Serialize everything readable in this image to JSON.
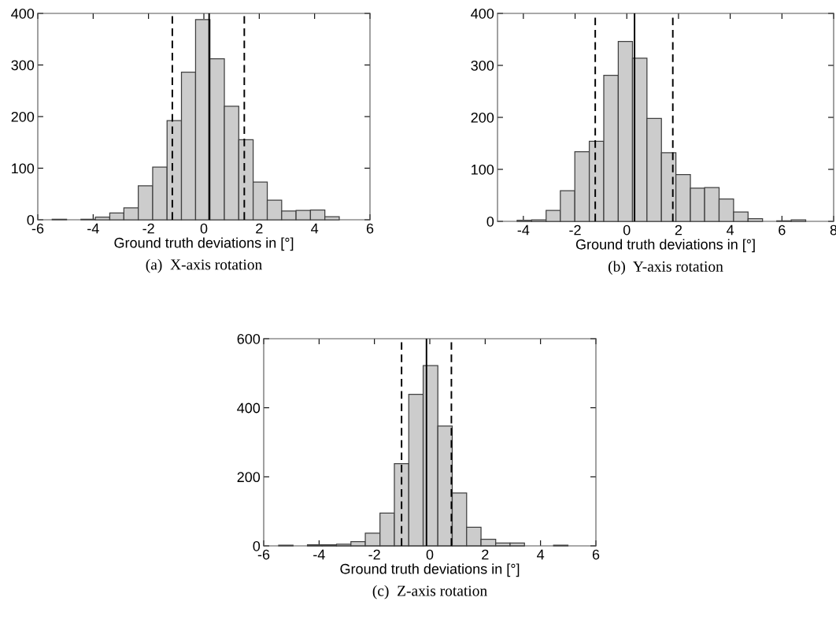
{
  "chart_data": [
    {
      "type": "histogram",
      "xlabel": "Ground truth deviations in [°]",
      "annotations": [
        "(a)  X-axis rotation"
      ],
      "color": "#cccccc",
      "bins": [
        -5.48,
        -4.96,
        -4.44,
        -3.92,
        -3.4,
        -2.89,
        -2.37,
        -1.85,
        -1.33,
        -0.81,
        -0.3,
        0.22,
        0.74,
        1.26,
        1.78,
        2.29,
        2.81,
        3.33,
        3.85,
        4.37,
        4.89
      ],
      "values": [
        1,
        0,
        1,
        5,
        13,
        23,
        66,
        102,
        192,
        286,
        388,
        312,
        220,
        155,
        73,
        38,
        17,
        18,
        19,
        6
      ],
      "xlim": [
        -6,
        6
      ],
      "xticks": [
        -6,
        -4,
        -2,
        0,
        2,
        4,
        6
      ],
      "ylim": [
        0,
        400
      ],
      "yticks": [
        0,
        100,
        200,
        300,
        400
      ],
      "ref_lines": [
        {
          "axis": "x",
          "value": 0.19,
          "color": "#000000",
          "line_style": "solid"
        },
        {
          "axis": "x",
          "value": -1.14,
          "color": "#000000",
          "line_style": "dashed"
        },
        {
          "axis": "x",
          "value": 1.46,
          "color": "#000000",
          "line_style": "dashed"
        }
      ]
    },
    {
      "type": "histogram",
      "xlabel": "Ground truth deviations in [°]",
      "annotations": [
        "(b)  Y-axis rotation"
      ],
      "color": "#cccccc",
      "bins": [
        -4.24,
        -3.68,
        -3.12,
        -2.57,
        -2.01,
        -1.45,
        -0.89,
        -0.33,
        0.22,
        0.78,
        1.34,
        1.9,
        2.46,
        3.01,
        3.57,
        4.13,
        4.69,
        5.25,
        5.8,
        6.36,
        6.92
      ],
      "values": [
        2,
        3,
        21,
        59,
        134,
        154,
        281,
        346,
        314,
        198,
        132,
        90,
        64,
        65,
        43,
        18,
        5,
        0,
        1,
        3
      ],
      "xlim": [
        -5,
        8
      ],
      "xticks": [
        -4,
        -2,
        0,
        2,
        4,
        6,
        8
      ],
      "ylim": [
        0,
        400
      ],
      "yticks": [
        0,
        100,
        200,
        300,
        400
      ],
      "ref_lines": [
        {
          "axis": "x",
          "value": 0.3,
          "color": "#000000",
          "line_style": "solid"
        },
        {
          "axis": "x",
          "value": -1.22,
          "color": "#000000",
          "line_style": "dashed"
        },
        {
          "axis": "x",
          "value": 1.78,
          "color": "#000000",
          "line_style": "dashed"
        }
      ]
    },
    {
      "type": "histogram",
      "xlabel": "Ground truth deviations in [°]",
      "annotations": [
        "(c)  Z-axis rotation"
      ],
      "color": "#cccccc",
      "bins": [
        -5.46,
        -4.94,
        -4.42,
        -3.89,
        -3.37,
        -2.85,
        -2.33,
        -1.8,
        -1.28,
        -0.76,
        -0.24,
        0.29,
        0.81,
        1.33,
        1.85,
        2.38,
        2.9,
        3.42,
        3.94,
        4.47,
        4.99
      ],
      "values": [
        2,
        0,
        3,
        3,
        5,
        12,
        37,
        95,
        238,
        439,
        522,
        347,
        153,
        54,
        19,
        8,
        8,
        0,
        0,
        2
      ],
      "xlim": [
        -6,
        6
      ],
      "xticks": [
        -6,
        -4,
        -2,
        0,
        2,
        4,
        6
      ],
      "ylim": [
        0,
        600
      ],
      "yticks": [
        0,
        200,
        400,
        600
      ],
      "ref_lines": [
        {
          "axis": "x",
          "value": -0.12,
          "color": "#000000",
          "line_style": "solid"
        },
        {
          "axis": "x",
          "value": -1.02,
          "color": "#000000",
          "line_style": "dashed"
        },
        {
          "axis": "x",
          "value": 0.78,
          "color": "#000000",
          "line_style": "dashed"
        }
      ]
    }
  ]
}
